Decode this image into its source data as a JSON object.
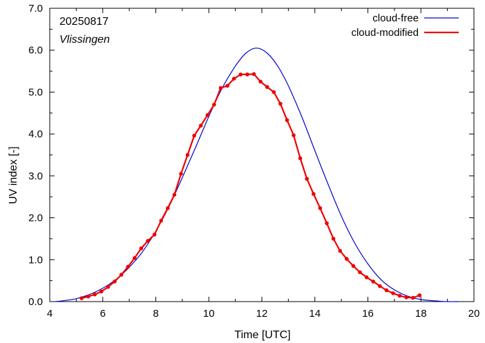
{
  "chart_data": {
    "type": "line",
    "date_label": "20250817",
    "location_label": "Vlissingen",
    "xlabel": "Time  [UTC]",
    "ylabel": "UV index  [-]",
    "xlim": [
      4,
      20
    ],
    "ylim": [
      0,
      7
    ],
    "x_ticks": [
      4,
      6,
      8,
      10,
      12,
      14,
      16,
      18,
      20
    ],
    "y_ticks": [
      0,
      1,
      2,
      3,
      4,
      5,
      6,
      7
    ],
    "x_tick_labels": [
      "4",
      "6",
      "8",
      "10",
      "12",
      "14",
      "16",
      "18",
      "20"
    ],
    "y_tick_labels": [
      "0.0",
      "1.0",
      "2.0",
      "3.0",
      "4.0",
      "5.0",
      "6.0",
      "7.0"
    ],
    "grid": false,
    "legend_position": "top-right",
    "series": [
      {
        "name": "cloud-free",
        "color": "#0000cc",
        "style": "line",
        "x": [
          4.2,
          4.5,
          5.0,
          5.5,
          6.0,
          6.5,
          7.0,
          7.5,
          8.0,
          8.5,
          9.0,
          9.5,
          10.0,
          10.5,
          11.0,
          11.4,
          11.8,
          12.2,
          12.6,
          13.0,
          13.5,
          14.0,
          14.5,
          15.0,
          15.5,
          16.0,
          16.5,
          17.0,
          17.5,
          18.0,
          18.5,
          19.0,
          19.4
        ],
        "y": [
          0.0,
          0.02,
          0.07,
          0.17,
          0.32,
          0.53,
          0.82,
          1.19,
          1.68,
          2.27,
          2.96,
          3.68,
          4.42,
          5.09,
          5.62,
          5.93,
          6.05,
          5.93,
          5.62,
          5.15,
          4.42,
          3.6,
          2.8,
          2.04,
          1.4,
          0.9,
          0.52,
          0.28,
          0.13,
          0.05,
          0.02,
          0.0,
          0.0
        ]
      },
      {
        "name": "cloud-modified",
        "color": "#ee0000",
        "style": "line-points",
        "x": [
          5.2,
          5.45,
          5.7,
          5.95,
          6.2,
          6.45,
          6.7,
          6.95,
          7.2,
          7.45,
          7.7,
          7.95,
          8.2,
          8.45,
          8.7,
          8.95,
          9.2,
          9.45,
          9.7,
          9.95,
          10.2,
          10.45,
          10.7,
          10.95,
          11.2,
          11.45,
          11.7,
          11.95,
          12.2,
          12.45,
          12.7,
          12.95,
          13.2,
          13.45,
          13.7,
          13.95,
          14.2,
          14.45,
          14.7,
          14.95,
          15.2,
          15.45,
          15.7,
          15.95,
          16.2,
          16.45,
          16.7,
          16.95,
          17.2,
          17.45,
          17.7,
          17.95
        ],
        "y": [
          0.08,
          0.12,
          0.17,
          0.24,
          0.35,
          0.48,
          0.64,
          0.83,
          1.04,
          1.27,
          1.45,
          1.6,
          1.93,
          2.23,
          2.55,
          3.05,
          3.5,
          3.96,
          4.2,
          4.45,
          4.7,
          5.1,
          5.15,
          5.32,
          5.42,
          5.42,
          5.43,
          5.25,
          5.12,
          5.0,
          4.72,
          4.33,
          3.97,
          3.42,
          2.93,
          2.57,
          2.23,
          1.87,
          1.5,
          1.21,
          1.02,
          0.85,
          0.7,
          0.58,
          0.48,
          0.37,
          0.27,
          0.2,
          0.14,
          0.1,
          0.09,
          0.15
        ]
      }
    ]
  }
}
